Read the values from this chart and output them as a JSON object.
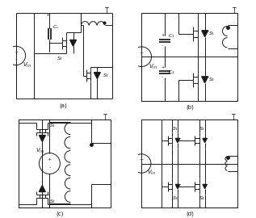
{
  "background_color": "#ffffff",
  "line_color": "#1a1a1a",
  "line_width": 0.7,
  "font_size": 5.0,
  "subfig_labels": [
    "(a)",
    "(b)",
    "(c)",
    "(d)"
  ]
}
